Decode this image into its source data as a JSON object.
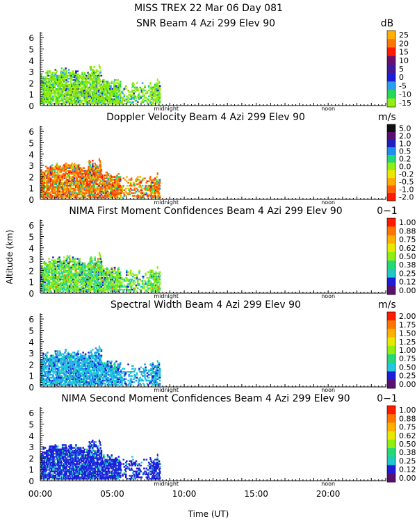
{
  "header": {
    "line1": "MISS TREX    22 Mar 06 Day 081"
  },
  "shared_axes": {
    "ylabel": "Altitude (km)",
    "xlabel": "Time (UT)",
    "x_ticks": [
      "00:00",
      "05:00",
      "10:00",
      "15:00",
      "20:00"
    ],
    "y_ticks": [
      "0",
      "1",
      "2",
      "3",
      "4",
      "5",
      "6"
    ],
    "midnight_label": "midnight",
    "noon_label": "noon"
  },
  "chart_data": [
    {
      "type": "heatmap",
      "title": "SNR Beam 4 Azi 299 Elev 90",
      "unit": "dB",
      "xlim": [
        0,
        24
      ],
      "ylim": [
        0,
        6.5
      ],
      "colorbar": {
        "labels": [
          "25",
          "20",
          "15",
          "10",
          "5",
          "0",
          "-5",
          "-10",
          "-15"
        ],
        "colors": [
          "#ffb000",
          "#ff7700",
          "#ff1a00",
          "#6a1070",
          "#401a9a",
          "#1e1ed8",
          "#2a9ef0",
          "#25d858",
          "#90ee10"
        ]
      },
      "data_extent": {
        "time_start": 0.0,
        "time_end": 8.3,
        "alt_min": 0.1,
        "alt_max": 3.5
      },
      "dominant_colors": [
        "#90ee10",
        "#8ae000",
        "#25d858",
        "#2a9ef0",
        "#1e1ed8",
        "#4d5a00"
      ]
    },
    {
      "type": "heatmap",
      "title": "Doppler Velocity Beam 4 Azi 299 Elev 90",
      "unit": "m/s",
      "xlim": [
        0,
        24
      ],
      "ylim": [
        0,
        6.5
      ],
      "colorbar": {
        "labels": [
          "5.0",
          "2.0",
          "1.0",
          "0.5",
          "0.2",
          "0.0",
          "-0.2",
          "-0.5",
          "-1.0",
          "-2.0"
        ],
        "colors": [
          "#111111",
          "#5a1070",
          "#2020c0",
          "#2090f0",
          "#25d878",
          "#90ee10",
          "#e8e800",
          "#ffaa00",
          "#ff6000",
          "#ff1a00"
        ]
      },
      "data_extent": {
        "time_start": 0.0,
        "time_end": 8.3,
        "alt_min": 0.1,
        "alt_max": 3.5
      },
      "dominant_colors": [
        "#ff6000",
        "#ffaa00",
        "#ff1a00",
        "#90ee10",
        "#25d878",
        "#2090f0",
        "#2020c0",
        "#e8e800"
      ]
    },
    {
      "type": "heatmap",
      "title": "NIMA First Moment Confidences Beam 4 Azi 299 Elev 90",
      "unit": "0−1",
      "xlim": [
        0,
        24
      ],
      "ylim": [
        0,
        6.5
      ],
      "colorbar": {
        "labels": [
          "1.00",
          "0.88",
          "0.75",
          "0.62",
          "0.50",
          "0.38",
          "0.25",
          "0.12",
          "0.00"
        ],
        "colors": [
          "#ff1a00",
          "#ff7700",
          "#ffb000",
          "#e8e800",
          "#90ee10",
          "#25d878",
          "#20c8c8",
          "#1e1ed8",
          "#5a1070"
        ]
      },
      "data_extent": {
        "time_start": 0.0,
        "time_end": 8.3,
        "alt_min": 0.1,
        "alt_max": 3.5
      },
      "dominant_colors": [
        "#90ee10",
        "#25d878",
        "#20c8c8",
        "#1e1ed8",
        "#ff7700"
      ]
    },
    {
      "type": "heatmap",
      "title": "Spectral Width Beam 4 Azi 299 Elev 90",
      "unit": "m/s",
      "xlim": [
        0,
        24
      ],
      "ylim": [
        0,
        6.5
      ],
      "colorbar": {
        "labels": [
          "2.00",
          "1.75",
          "1.50",
          "1.25",
          "1.00",
          "0.75",
          "0.50",
          "0.25",
          "0.00"
        ],
        "colors": [
          "#ff1a00",
          "#ff7700",
          "#ffb000",
          "#e8e800",
          "#90ee10",
          "#25d878",
          "#20c8e0",
          "#1e1ed8",
          "#5a1070"
        ]
      },
      "data_extent": {
        "time_start": 0.0,
        "time_end": 8.3,
        "alt_min": 0.1,
        "alt_max": 3.5
      },
      "dominant_colors": [
        "#20c8e0",
        "#2090f0",
        "#1e1ed8",
        "#25d878",
        "#20a0c0"
      ]
    },
    {
      "type": "heatmap",
      "title": "NIMA Second Moment Confidences Beam 4 Azi 299 Elev 90",
      "unit": "0−1",
      "xlim": [
        0,
        24
      ],
      "ylim": [
        0,
        6.5
      ],
      "colorbar": {
        "labels": [
          "1.00",
          "0.88",
          "0.75",
          "0.62",
          "0.50",
          "0.38",
          "0.25",
          "0.12",
          "0.00"
        ],
        "colors": [
          "#ff1a00",
          "#ff7700",
          "#ffb000",
          "#e8e800",
          "#90ee10",
          "#25d878",
          "#20c8c8",
          "#1e1ed8",
          "#5a1070"
        ]
      },
      "data_extent": {
        "time_start": 0.0,
        "time_end": 8.3,
        "alt_min": 0.1,
        "alt_max": 3.5
      },
      "dominant_colors": [
        "#1e1ed8",
        "#2040e0",
        "#20c8c8",
        "#25d878"
      ]
    }
  ]
}
